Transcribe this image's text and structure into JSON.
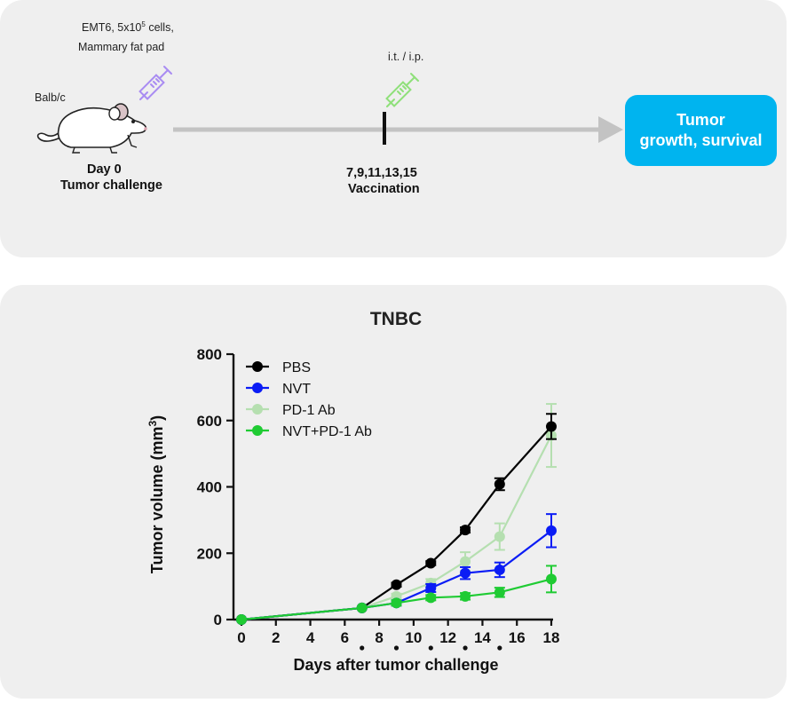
{
  "timeline": {
    "mouse_label": "Balb/c",
    "cells_line1_prefix": "EMT6, 5x10",
    "cells_exponent": "5",
    "cells_line1_suffix": " cells,",
    "cells_line2": "Mammary fat pad",
    "day0_label": "Day  0",
    "challenge_label": "Tumor challenge",
    "route_label": "i.t. / i.p.",
    "vaccination_days": "7,9,11,13,15",
    "vaccination_label": "Vaccination",
    "outcome_label": "Tumor\ngrowth, survival",
    "colors": {
      "arrow": "#c3c3c3",
      "outcome_box": "#00b4ef",
      "syringe_1": "#a98cf2",
      "syringe_2": "#8fe07a"
    }
  },
  "chart_data": {
    "type": "line",
    "title": "TNBC",
    "xlabel": "Days after tumor challenge",
    "ylabel_main": "Tumor volume (mm",
    "ylabel_sup": "3",
    "ylabel_close": ")",
    "xlim": [
      0,
      18
    ],
    "ylim": [
      0,
      800
    ],
    "x_ticks": [
      0,
      2,
      4,
      6,
      8,
      10,
      12,
      14,
      16,
      18
    ],
    "x_tick_labels": [
      "0",
      "2",
      "4",
      "6",
      "8",
      "10",
      "12",
      "14",
      "16",
      "18"
    ],
    "y_ticks": [
      0,
      200,
      400,
      600,
      800
    ],
    "y_tick_labels": [
      "0",
      "200",
      "400",
      "600",
      "800"
    ],
    "vaccination_markers": [
      7,
      9,
      11,
      13,
      15
    ],
    "legend_position": "top-left",
    "grid": false,
    "x": [
      0,
      7,
      9,
      11,
      13,
      15,
      18
    ],
    "series": [
      {
        "name": "PD-1 Ab",
        "color": "#b5dfb0",
        "marker": "circle",
        "values": [
          0,
          35,
          70,
          110,
          175,
          250,
          555
        ],
        "errors": [
          0,
          0,
          8,
          12,
          28,
          40,
          95
        ]
      },
      {
        "name": "PBS",
        "color": "#000000",
        "marker": "circle",
        "values": [
          0,
          35,
          105,
          170,
          270,
          408,
          582
        ],
        "errors": [
          0,
          0,
          6,
          6,
          8,
          18,
          38
        ]
      },
      {
        "name": "NVT",
        "color": "#0a1cf5",
        "marker": "circle",
        "values": [
          0,
          35,
          50,
          95,
          140,
          150,
          268
        ],
        "errors": [
          0,
          0,
          8,
          12,
          18,
          22,
          50
        ]
      },
      {
        "name": "NVT+PD-1 Ab",
        "color": "#1fcb33",
        "marker": "circle",
        "values": [
          0,
          35,
          50,
          66,
          70,
          82,
          122
        ],
        "errors": [
          0,
          0,
          8,
          8,
          10,
          14,
          40
        ]
      }
    ],
    "legend_order": [
      "PBS",
      "NVT",
      "PD-1 Ab",
      "NVT+PD-1 Ab"
    ]
  }
}
